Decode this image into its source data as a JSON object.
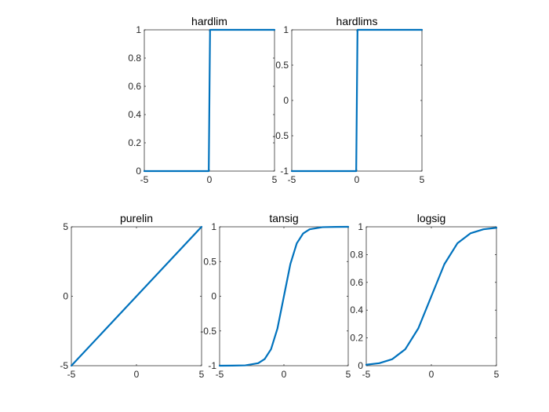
{
  "chart_data": [
    {
      "type": "line",
      "title": "hardlim",
      "xlim": [
        -5,
        5
      ],
      "ylim": [
        0,
        1
      ],
      "xticks": [
        -5,
        0,
        5
      ],
      "yticks": [
        0,
        0.2,
        0.4,
        0.6,
        0.8,
        1
      ],
      "xtick_labels": [
        "-5",
        "0",
        "5"
      ],
      "ytick_labels": [
        "0",
        "0.2",
        "0.4",
        "0.6",
        "0.8",
        "1"
      ],
      "grid": false,
      "series": [
        {
          "function": "hardlim",
          "x": [
            -5,
            -0.05,
            0.05,
            5
          ],
          "y": [
            0,
            0,
            1,
            1
          ],
          "color": "#0072BD"
        }
      ]
    },
    {
      "type": "line",
      "title": "hardlims",
      "xlim": [
        -5,
        5
      ],
      "ylim": [
        -1,
        1
      ],
      "xticks": [
        -5,
        0,
        5
      ],
      "yticks": [
        -1,
        -0.5,
        0,
        0.5,
        1
      ],
      "xtick_labels": [
        "-5",
        "0",
        "5"
      ],
      "ytick_labels": [
        "-1",
        "-0.5",
        "0",
        "0.5",
        "1"
      ],
      "grid": false,
      "series": [
        {
          "function": "hardlims",
          "x": [
            -5,
            -0.05,
            0.05,
            5
          ],
          "y": [
            -1,
            -1,
            1,
            1
          ],
          "color": "#0072BD"
        }
      ]
    },
    {
      "type": "line",
      "title": "purelin",
      "xlim": [
        -5,
        5
      ],
      "ylim": [
        -5,
        5
      ],
      "xticks": [
        -5,
        0,
        5
      ],
      "yticks": [
        -5,
        0,
        5
      ],
      "xtick_labels": [
        "-5",
        "0",
        "5"
      ],
      "ytick_labels": [
        "-5",
        "0",
        "5"
      ],
      "grid": false,
      "series": [
        {
          "function": "purelin",
          "x": [
            -5,
            5
          ],
          "y": [
            -5,
            5
          ],
          "color": "#0072BD"
        }
      ]
    },
    {
      "type": "line",
      "title": "tansig",
      "xlim": [
        -5,
        5
      ],
      "ylim": [
        -1,
        1
      ],
      "xticks": [
        -5,
        0,
        5
      ],
      "yticks": [
        -1,
        -0.5,
        0,
        0.5,
        1
      ],
      "xtick_labels": [
        "-5",
        "0",
        "5"
      ],
      "ytick_labels": [
        "-1",
        "-0.5",
        "0",
        "0.5",
        "1"
      ],
      "grid": false,
      "series": [
        {
          "function": "tansig",
          "x": [
            -5,
            -4,
            -3,
            -2,
            -1.5,
            -1,
            -0.5,
            0,
            0.5,
            1,
            1.5,
            2,
            3,
            4,
            5
          ],
          "y": [
            -1,
            -0.999,
            -0.995,
            -0.964,
            -0.905,
            -0.762,
            -0.462,
            0,
            0.462,
            0.762,
            0.905,
            0.964,
            0.995,
            0.999,
            1
          ],
          "color": "#0072BD"
        }
      ]
    },
    {
      "type": "line",
      "title": "logsig",
      "xlim": [
        -5,
        5
      ],
      "ylim": [
        0,
        1
      ],
      "xticks": [
        -5,
        0,
        5
      ],
      "yticks": [
        0,
        0.2,
        0.4,
        0.6,
        0.8,
        1
      ],
      "xtick_labels": [
        "-5",
        "0",
        "5"
      ],
      "ytick_labels": [
        "0",
        "0.2",
        "0.4",
        "0.6",
        "0.8",
        "1"
      ],
      "grid": false,
      "series": [
        {
          "function": "logsig",
          "x": [
            -5,
            -4,
            -3,
            -2,
            -1,
            0,
            1,
            2,
            3,
            4,
            5
          ],
          "y": [
            0.007,
            0.018,
            0.047,
            0.119,
            0.269,
            0.5,
            0.731,
            0.881,
            0.953,
            0.982,
            0.993
          ],
          "color": "#0072BD"
        }
      ]
    }
  ]
}
